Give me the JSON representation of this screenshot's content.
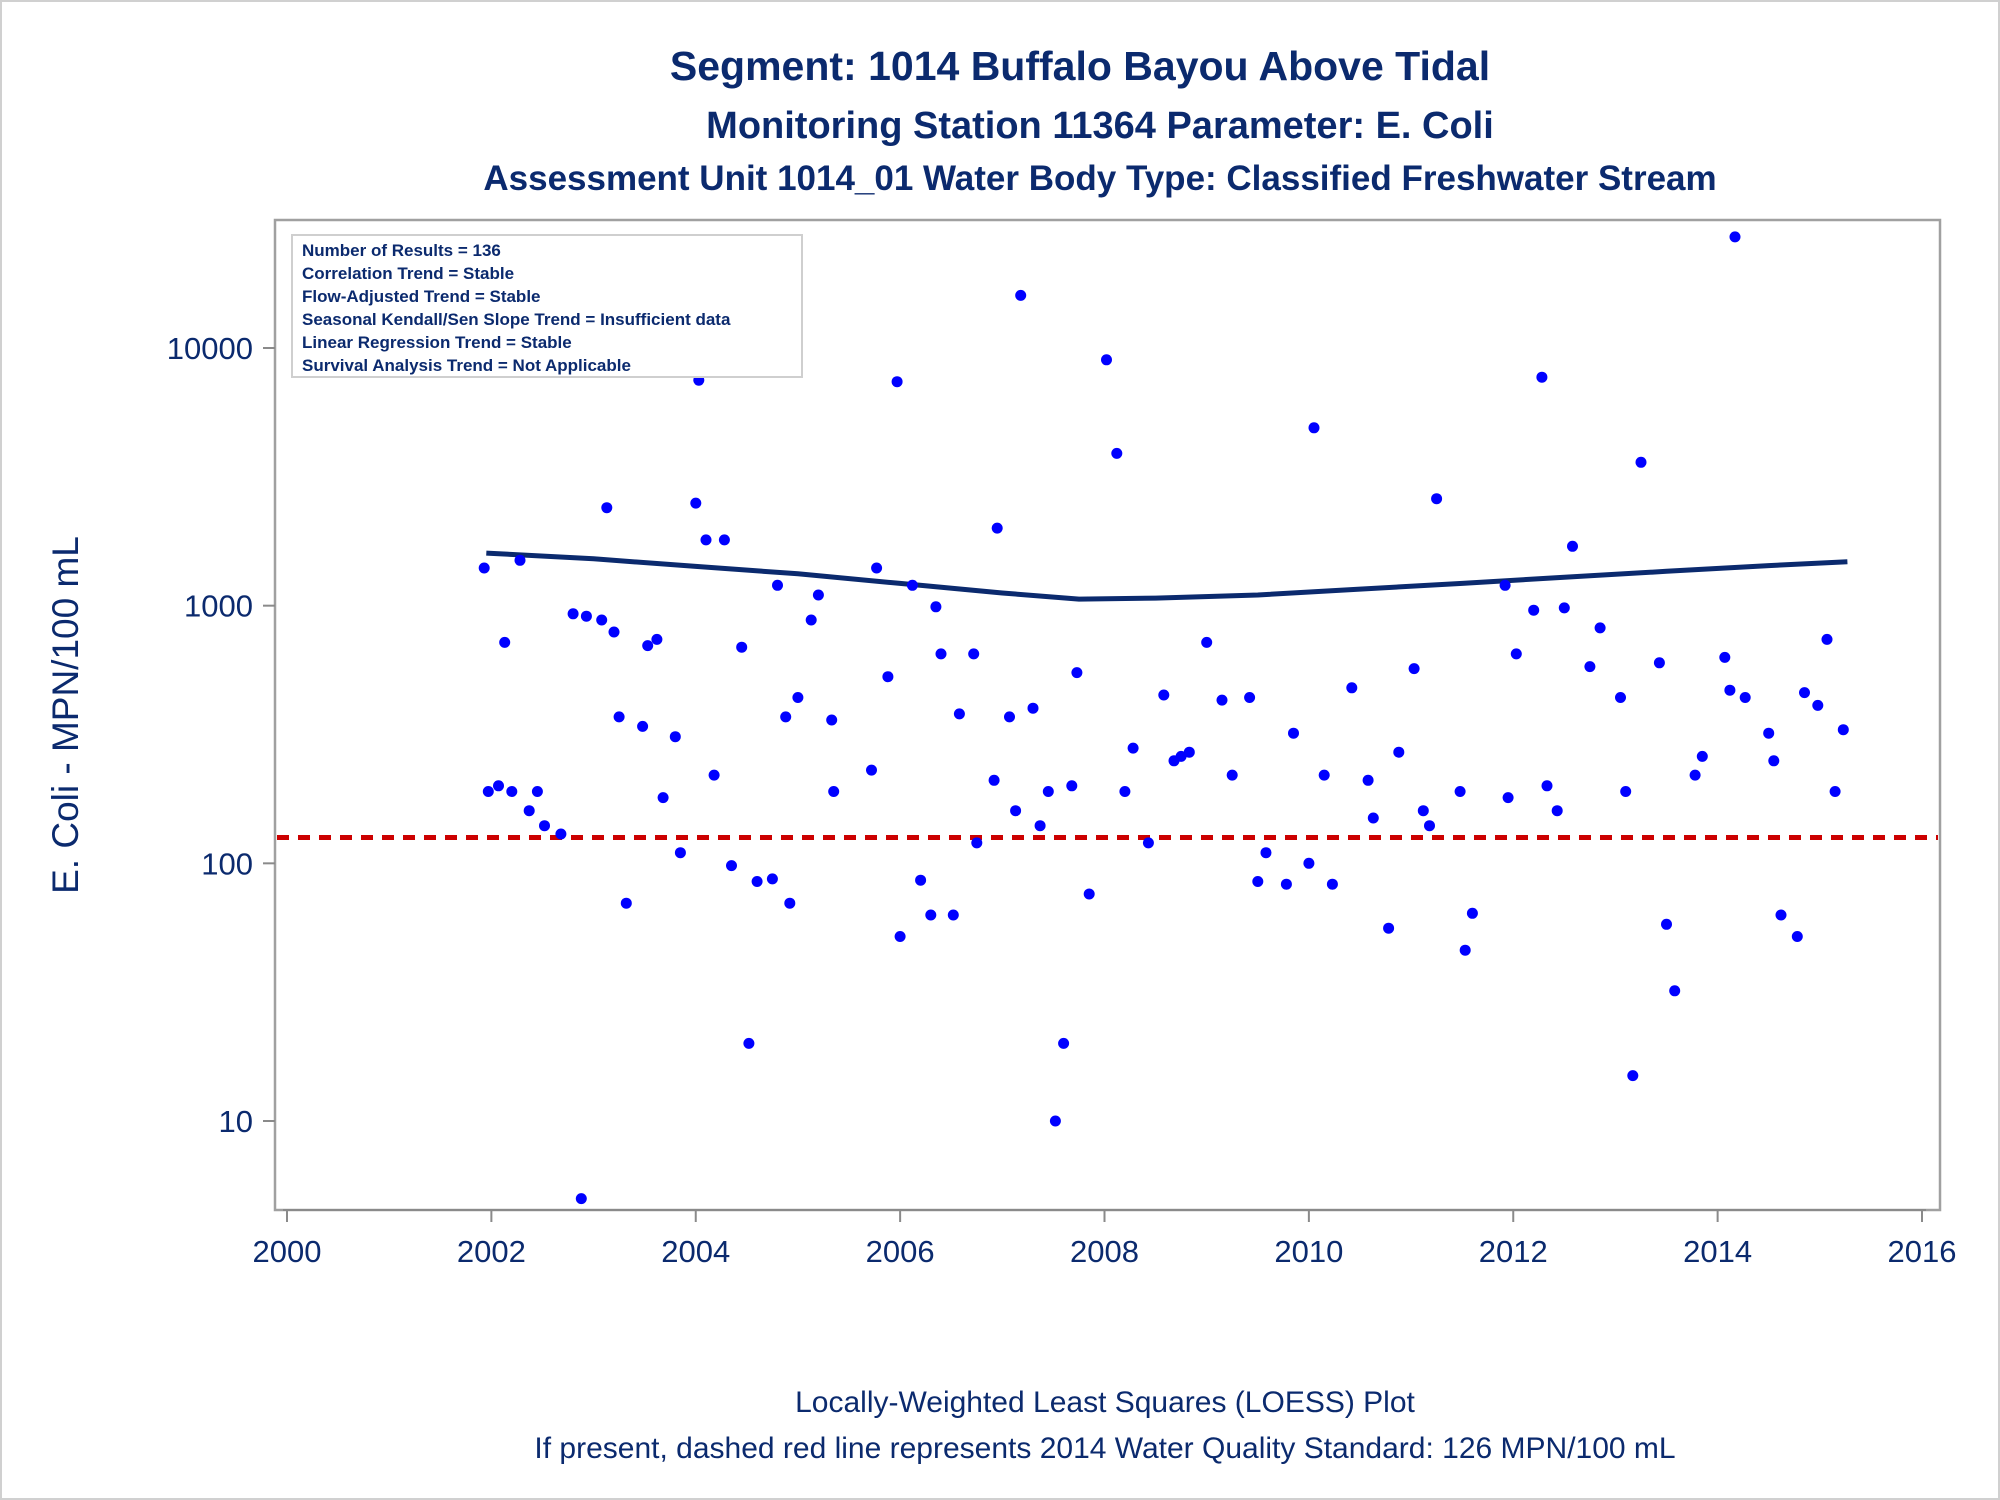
{
  "chart_data": {
    "type": "scatter",
    "title": "Segment: 1014  Buffalo Bayou Above Tidal",
    "subtitle": "Monitoring Station 11364 Parameter: E. Coli",
    "subtitle2": "Assessment Unit 1014_01   Water Body Type: Classified Freshwater Stream",
    "ylabel": "E. Coli - MPN/100 mL",
    "y_scale": "log",
    "ylim": [
      4.5,
      30000
    ],
    "xlim": [
      2000,
      2016
    ],
    "x_ticks": [
      "2000",
      "2002",
      "2004",
      "2006",
      "2008",
      "2010",
      "2012",
      "2014",
      "2016"
    ],
    "y_ticks": [
      "10",
      "100",
      "1000",
      "10000"
    ],
    "grid": false,
    "inset_lines": [
      "Number of Results = 136",
      "Correlation Trend = Stable",
      "Flow-Adjusted Trend = Stable",
      "Seasonal Kendall/Sen Slope Trend = Insufficient data",
      "Linear Regression Trend = Stable",
      "Survival Analysis Trend = Not Applicable"
    ],
    "footnote_1": "Locally-Weighted Least Squares (LOESS) Plot",
    "footnote_2": "If present, dashed red line represents 2014 Water Quality Standard: 126 MPN/100 mL",
    "standard_value": 126,
    "colors": {
      "points": "#0000ff",
      "loess": "#0b2a6e",
      "standard": "#cc0000",
      "text": "#0b2a6e"
    },
    "loess": [
      [
        2001.95,
        1600
      ],
      [
        2003.0,
        1520
      ],
      [
        2004.0,
        1420
      ],
      [
        2005.0,
        1330
      ],
      [
        2006.0,
        1220
      ],
      [
        2007.0,
        1120
      ],
      [
        2007.75,
        1060
      ],
      [
        2008.5,
        1070
      ],
      [
        2009.5,
        1100
      ],
      [
        2010.5,
        1160
      ],
      [
        2011.5,
        1220
      ],
      [
        2012.5,
        1290
      ],
      [
        2013.5,
        1360
      ],
      [
        2014.5,
        1430
      ],
      [
        2015.27,
        1480
      ]
    ],
    "points": [
      [
        2001.93,
        1400
      ],
      [
        2001.97,
        190
      ],
      [
        2002.07,
        200
      ],
      [
        2002.13,
        720
      ],
      [
        2002.2,
        190
      ],
      [
        2002.28,
        1500
      ],
      [
        2002.37,
        160
      ],
      [
        2002.45,
        190
      ],
      [
        2002.52,
        140
      ],
      [
        2002.68,
        130
      ],
      [
        2002.68,
        24000
      ],
      [
        2002.8,
        930
      ],
      [
        2002.88,
        5
      ],
      [
        2002.93,
        910
      ],
      [
        2003.08,
        880
      ],
      [
        2003.13,
        2400
      ],
      [
        2003.2,
        790
      ],
      [
        2003.25,
        370
      ],
      [
        2003.32,
        70
      ],
      [
        2003.48,
        340
      ],
      [
        2003.53,
        700
      ],
      [
        2003.62,
        740
      ],
      [
        2003.68,
        180
      ],
      [
        2003.8,
        310
      ],
      [
        2003.85,
        110
      ],
      [
        2004.0,
        2500
      ],
      [
        2004.03,
        7500
      ],
      [
        2004.1,
        1800
      ],
      [
        2004.18,
        220
      ],
      [
        2004.28,
        1800
      ],
      [
        2004.35,
        98
      ],
      [
        2004.45,
        690
      ],
      [
        2004.52,
        20
      ],
      [
        2004.6,
        85
      ],
      [
        2004.75,
        87
      ],
      [
        2004.8,
        1200
      ],
      [
        2004.88,
        370
      ],
      [
        2004.92,
        70
      ],
      [
        2005.0,
        440
      ],
      [
        2005.13,
        880
      ],
      [
        2005.2,
        1100
      ],
      [
        2005.33,
        360
      ],
      [
        2005.35,
        190
      ],
      [
        2005.72,
        230
      ],
      [
        2005.77,
        1400
      ],
      [
        2005.88,
        530
      ],
      [
        2005.97,
        7400
      ],
      [
        2006.0,
        52
      ],
      [
        2006.12,
        1200
      ],
      [
        2006.2,
        86
      ],
      [
        2006.3,
        63
      ],
      [
        2006.35,
        990
      ],
      [
        2006.4,
        650
      ],
      [
        2006.52,
        63
      ],
      [
        2006.58,
        380
      ],
      [
        2006.72,
        650
      ],
      [
        2006.75,
        120
      ],
      [
        2006.92,
        210
      ],
      [
        2006.95,
        2000
      ],
      [
        2007.07,
        370
      ],
      [
        2007.13,
        160
      ],
      [
        2007.18,
        16000
      ],
      [
        2007.3,
        400
      ],
      [
        2007.37,
        140
      ],
      [
        2007.45,
        190
      ],
      [
        2007.52,
        10
      ],
      [
        2007.6,
        20
      ],
      [
        2007.68,
        200
      ],
      [
        2007.73,
        550
      ],
      [
        2007.85,
        76
      ],
      [
        2008.02,
        9000
      ],
      [
        2008.12,
        3900
      ],
      [
        2008.2,
        190
      ],
      [
        2008.28,
        280
      ],
      [
        2008.43,
        120
      ],
      [
        2008.58,
        450
      ],
      [
        2008.68,
        250
      ],
      [
        2008.75,
        260
      ],
      [
        2008.83,
        270
      ],
      [
        2009.0,
        720
      ],
      [
        2009.15,
        430
      ],
      [
        2009.25,
        220
      ],
      [
        2009.42,
        440
      ],
      [
        2009.5,
        85
      ],
      [
        2009.58,
        110
      ],
      [
        2009.78,
        83
      ],
      [
        2009.85,
        320
      ],
      [
        2010.0,
        100
      ],
      [
        2010.05,
        4900
      ],
      [
        2010.15,
        220
      ],
      [
        2010.23,
        83
      ],
      [
        2010.42,
        480
      ],
      [
        2010.58,
        210
      ],
      [
        2010.63,
        150
      ],
      [
        2010.78,
        56
      ],
      [
        2010.88,
        270
      ],
      [
        2011.03,
        570
      ],
      [
        2011.12,
        160
      ],
      [
        2011.18,
        140
      ],
      [
        2011.25,
        2600
      ],
      [
        2011.48,
        190
      ],
      [
        2011.53,
        46
      ],
      [
        2011.6,
        64
      ],
      [
        2011.92,
        1200
      ],
      [
        2011.95,
        180
      ],
      [
        2012.03,
        650
      ],
      [
        2012.2,
        960
      ],
      [
        2012.28,
        7700
      ],
      [
        2012.33,
        200
      ],
      [
        2012.43,
        160
      ],
      [
        2012.5,
        980
      ],
      [
        2012.58,
        1700
      ],
      [
        2012.75,
        580
      ],
      [
        2012.85,
        820
      ],
      [
        2013.05,
        440
      ],
      [
        2013.1,
        190
      ],
      [
        2013.17,
        15
      ],
      [
        2013.25,
        3600
      ],
      [
        2013.43,
        600
      ],
      [
        2013.5,
        58
      ],
      [
        2013.58,
        32
      ],
      [
        2013.78,
        220
      ],
      [
        2013.85,
        260
      ],
      [
        2014.07,
        630
      ],
      [
        2014.12,
        470
      ],
      [
        2014.17,
        27000
      ],
      [
        2014.27,
        440
      ],
      [
        2014.5,
        320
      ],
      [
        2014.55,
        250
      ],
      [
        2014.62,
        63
      ],
      [
        2014.78,
        52
      ],
      [
        2014.85,
        460
      ],
      [
        2014.98,
        410
      ],
      [
        2015.07,
        740
      ],
      [
        2015.15,
        190
      ],
      [
        2015.23,
        330
      ]
    ]
  }
}
